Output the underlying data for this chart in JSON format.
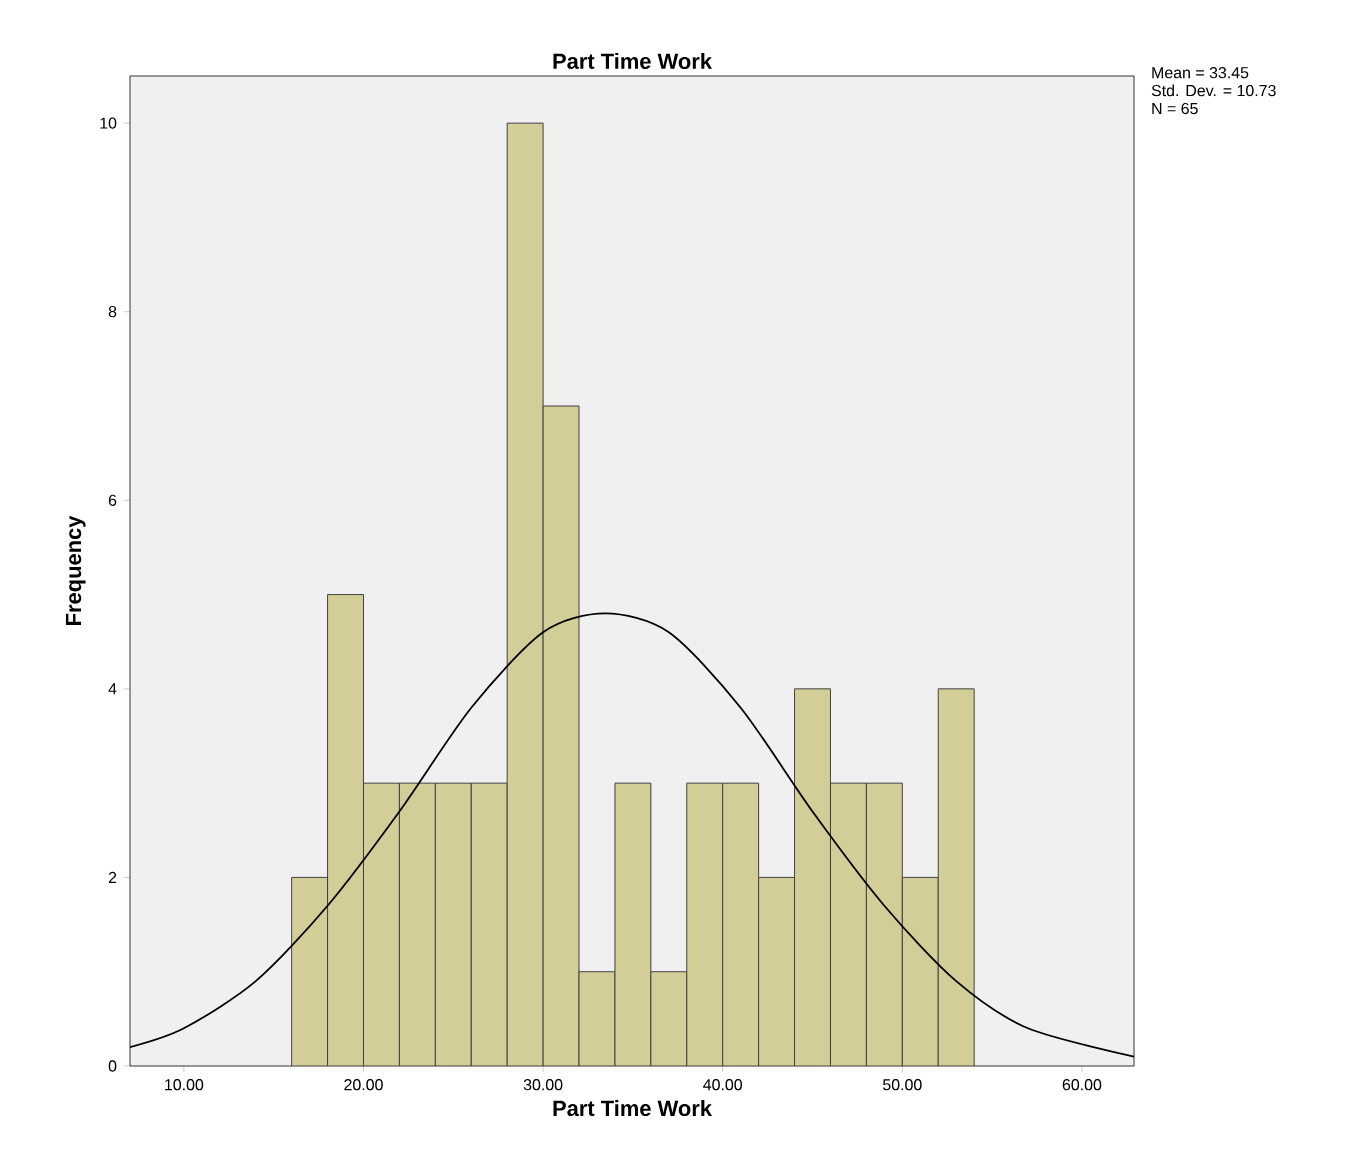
{
  "chart_data": {
    "type": "histogram",
    "title": "Part Time Work",
    "xlabel": "Part Time Work",
    "ylabel": "Frequency",
    "bins": [
      16,
      18,
      20,
      22,
      24,
      26,
      28,
      30,
      32,
      34,
      36,
      38,
      40,
      42,
      44,
      46,
      48,
      50,
      52,
      54
    ],
    "values": [
      2,
      5,
      3,
      3,
      3,
      3,
      10,
      7,
      1,
      3,
      1,
      3,
      3,
      2,
      4,
      3,
      3,
      2,
      4
    ],
    "color": "#d3ce97",
    "series": [
      {
        "type": "line",
        "color": "#000000",
        "x": [
          7,
          10,
          14,
          18,
          22,
          26,
          30,
          33.45,
          37,
          41,
          45,
          49,
          53,
          57,
          62.9
        ],
        "values": [
          0.2,
          0.4,
          0.9,
          1.7,
          2.7,
          3.8,
          4.6,
          4.8,
          4.6,
          3.8,
          2.7,
          1.7,
          0.9,
          0.4,
          0.1
        ]
      }
    ],
    "xlim": [
      7,
      62.9
    ],
    "ylim": [
      0,
      10.5
    ],
    "xticks": [
      {
        "value": 10,
        "label": "10.00"
      },
      {
        "value": 20,
        "label": "20.00"
      },
      {
        "value": 30,
        "label": "30.00"
      },
      {
        "value": 40,
        "label": "40.00"
      },
      {
        "value": 50,
        "label": "50.00"
      },
      {
        "value": 60,
        "label": "60.00"
      }
    ],
    "yticks": [
      0,
      2,
      4,
      6,
      8,
      10
    ],
    "annotations": [
      "Mean = 33.45",
      "Std. Dev. = 10.73",
      "N = 65"
    ],
    "grid": false
  }
}
